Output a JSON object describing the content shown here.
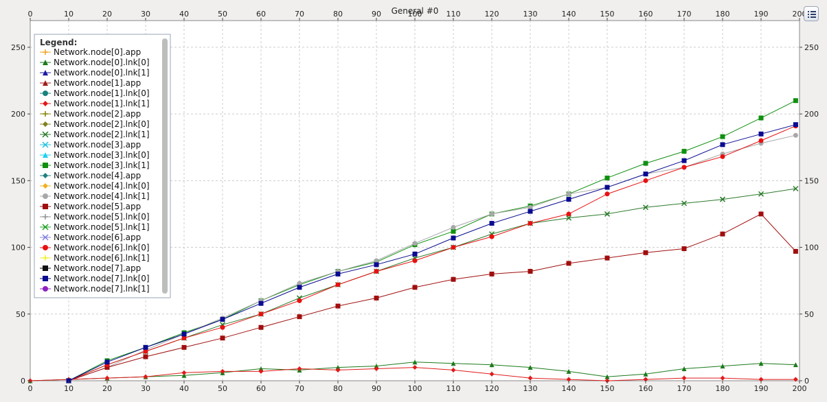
{
  "window": {
    "options_icon": "list-options-icon"
  },
  "chart_data": {
    "type": "line",
    "title": "General  #0",
    "xlabel": "",
    "ylabel": "",
    "xlim": [
      0,
      200
    ],
    "ylim": [
      0,
      270
    ],
    "x_ticks": [
      0,
      10,
      20,
      30,
      40,
      50,
      60,
      70,
      80,
      90,
      100,
      110,
      120,
      130,
      140,
      150,
      160,
      170,
      180,
      190,
      200
    ],
    "y_ticks": [
      0,
      50,
      100,
      150,
      200,
      250
    ],
    "grid": true,
    "legend_position": "top-left",
    "legend_title": "Legend:",
    "series": [
      {
        "name": "Network.node[0].app",
        "color": "#f0a020",
        "marker": "plus",
        "values": []
      },
      {
        "name": "Network.node[0].lnk[0]",
        "color": "#1a7a1a",
        "marker": "triangle",
        "x": [
          0,
          10,
          20,
          30,
          40,
          50,
          60,
          70,
          80,
          90,
          100,
          110,
          120,
          130,
          140,
          150,
          160,
          170,
          180,
          190,
          199
        ],
        "y": [
          0,
          1,
          2,
          3,
          4,
          6,
          9,
          8,
          10,
          11,
          14,
          13,
          12,
          10,
          7,
          3,
          5,
          9,
          11,
          13,
          12
        ]
      },
      {
        "name": "Network.node[0].lnk[1]",
        "color": "#1a1aa0",
        "marker": "triangle",
        "values": []
      },
      {
        "name": "Network.node[1].app",
        "color": "#a01a1a",
        "marker": "triangle",
        "values": []
      },
      {
        "name": "Network.node[1].lnk[0]",
        "color": "#1a8080",
        "marker": "circle",
        "values": []
      },
      {
        "name": "Network.node[1].lnk[1]",
        "color": "#e01a1a",
        "marker": "diamond",
        "x": [
          0,
          10,
          20,
          30,
          40,
          50,
          60,
          70,
          80,
          90,
          100,
          110,
          120,
          130,
          140,
          150,
          160,
          170,
          180,
          190,
          199
        ],
        "y": [
          0,
          1,
          2,
          3,
          6,
          7,
          7,
          9,
          8,
          9,
          10,
          8,
          5,
          2,
          1,
          0,
          1,
          2,
          2,
          1,
          1
        ]
      },
      {
        "name": "Network.node[2].app",
        "color": "#808000",
        "marker": "plus",
        "values": []
      },
      {
        "name": "Network.node[2].lnk[0]",
        "color": "#808020",
        "marker": "diamond",
        "values": []
      },
      {
        "name": "Network.node[2].lnk[1]",
        "color": "#2a7a2a",
        "marker": "cross",
        "x": [
          10,
          20,
          30,
          40,
          50,
          60,
          70,
          80,
          90,
          100,
          110,
          120,
          130,
          140,
          150,
          160,
          170,
          180,
          190,
          199
        ],
        "y": [
          0,
          12,
          22,
          32,
          42,
          50,
          62,
          72,
          82,
          92,
          100,
          110,
          118,
          122,
          125,
          130,
          133,
          136,
          140,
          144
        ]
      },
      {
        "name": "Network.node[3].app",
        "color": "#20c0e0",
        "marker": "cross",
        "values": []
      },
      {
        "name": "Network.node[3].lnk[0]",
        "color": "#20d0f0",
        "marker": "triangle",
        "values": []
      },
      {
        "name": "Network.node[3].lnk[1]",
        "color": "#109010",
        "marker": "square",
        "x": [
          10,
          20,
          30,
          40,
          50,
          60,
          70,
          80,
          90,
          100,
          110,
          120,
          130,
          140,
          150,
          160,
          170,
          180,
          190,
          199
        ],
        "y": [
          0,
          15,
          25,
          36,
          46,
          60,
          72,
          82,
          89,
          102,
          112,
          125,
          131,
          140,
          152,
          163,
          172,
          183,
          197,
          210
        ]
      },
      {
        "name": "Network.node[4].app",
        "color": "#208080",
        "marker": "diamond",
        "values": []
      },
      {
        "name": "Network.node[4].lnk[0]",
        "color": "#f0b020",
        "marker": "diamond",
        "values": []
      },
      {
        "name": "Network.node[4].lnk[1]",
        "color": "#a8a8a8",
        "marker": "circle",
        "x": [
          10,
          20,
          30,
          40,
          50,
          60,
          70,
          80,
          90,
          100,
          110,
          120,
          130,
          140,
          150,
          160,
          170,
          180,
          190,
          199
        ],
        "y": [
          0,
          10,
          23,
          35,
          47,
          60,
          73,
          82,
          90,
          103,
          115,
          125,
          130,
          140,
          145,
          155,
          160,
          170,
          178,
          184
        ]
      },
      {
        "name": "Network.node[5].app",
        "color": "#a00e0e",
        "marker": "square",
        "x": [
          10,
          20,
          30,
          40,
          50,
          60,
          70,
          80,
          90,
          100,
          110,
          120,
          130,
          140,
          150,
          160,
          170,
          180,
          190,
          199
        ],
        "y": [
          0,
          10,
          18,
          25,
          32,
          40,
          48,
          56,
          62,
          70,
          76,
          80,
          82,
          88,
          92,
          96,
          99,
          110,
          125,
          97
        ]
      },
      {
        "name": "Network.node[5].lnk[0]",
        "color": "#909090",
        "marker": "plus",
        "values": []
      },
      {
        "name": "Network.node[5].lnk[1]",
        "color": "#20a020",
        "marker": "cross",
        "values": []
      },
      {
        "name": "Network.node[6].app",
        "color": "#8080e0",
        "marker": "cross",
        "values": []
      },
      {
        "name": "Network.node[6].lnk[0]",
        "color": "#e81010",
        "marker": "circle",
        "x": [
          10,
          20,
          30,
          40,
          50,
          60,
          70,
          80,
          90,
          100,
          110,
          120,
          130,
          140,
          150,
          160,
          170,
          180,
          190,
          199
        ],
        "y": [
          0,
          12,
          22,
          32,
          40,
          50,
          60,
          72,
          82,
          90,
          100,
          108,
          118,
          125,
          140,
          150,
          160,
          168,
          180,
          191
        ]
      },
      {
        "name": "Network.node[6].lnk[1]",
        "color": "#f0f020",
        "marker": "plus",
        "values": []
      },
      {
        "name": "Network.node[7].app",
        "color": "#111111",
        "marker": "square",
        "values": []
      },
      {
        "name": "Network.node[7].lnk[0]",
        "color": "#0a0a90",
        "marker": "square",
        "x": [
          10,
          20,
          30,
          40,
          50,
          60,
          70,
          80,
          90,
          100,
          110,
          120,
          130,
          140,
          150,
          160,
          170,
          180,
          190,
          199
        ],
        "y": [
          0,
          14,
          25,
          35,
          46,
          58,
          70,
          80,
          87,
          95,
          107,
          118,
          127,
          136,
          145,
          155,
          165,
          177,
          185,
          192
        ]
      },
      {
        "name": "Network.node[7].lnk[1]",
        "color": "#9020c0",
        "marker": "circle",
        "values": []
      }
    ]
  }
}
